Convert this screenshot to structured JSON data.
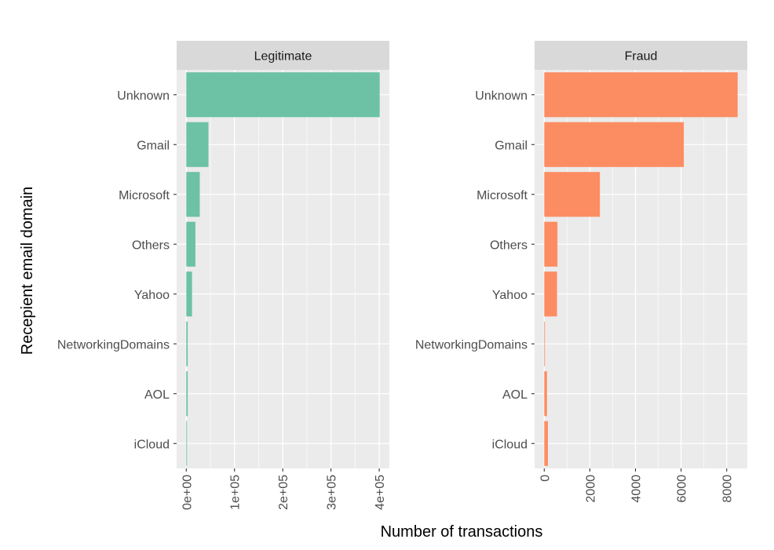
{
  "chart_data": {
    "type": "bar",
    "orientation": "horizontal",
    "xlabel": "Number of transactions",
    "ylabel": "Recepient email domain",
    "categories": [
      "Unknown",
      "Gmail",
      "Microsoft",
      "Others",
      "Yahoo",
      "NetworkingDomains",
      "AOL",
      "iCloud"
    ],
    "grid": true,
    "legend": "none",
    "panels": [
      {
        "name": "Legitimate",
        "color": "#6DC2A5",
        "values": [
          401000,
          46000,
          28000,
          19000,
          12000,
          3000,
          3000,
          1500
        ],
        "xlim": [
          -20000,
          421000
        ],
        "ticks": [
          0,
          100000,
          200000,
          300000,
          400000
        ],
        "tick_labels": [
          "0e+00",
          "1e+05",
          "2e+05",
          "3e+05",
          "4e+05"
        ]
      },
      {
        "name": "Fraud",
        "color": "#FC8D62",
        "values": [
          8480,
          6120,
          2440,
          580,
          560,
          30,
          120,
          160
        ],
        "xlim": [
          -424,
          8904
        ],
        "ticks": [
          0,
          2000,
          4000,
          6000,
          8000
        ],
        "tick_labels": [
          "0",
          "2000",
          "4000",
          "6000",
          "8000"
        ]
      }
    ]
  }
}
